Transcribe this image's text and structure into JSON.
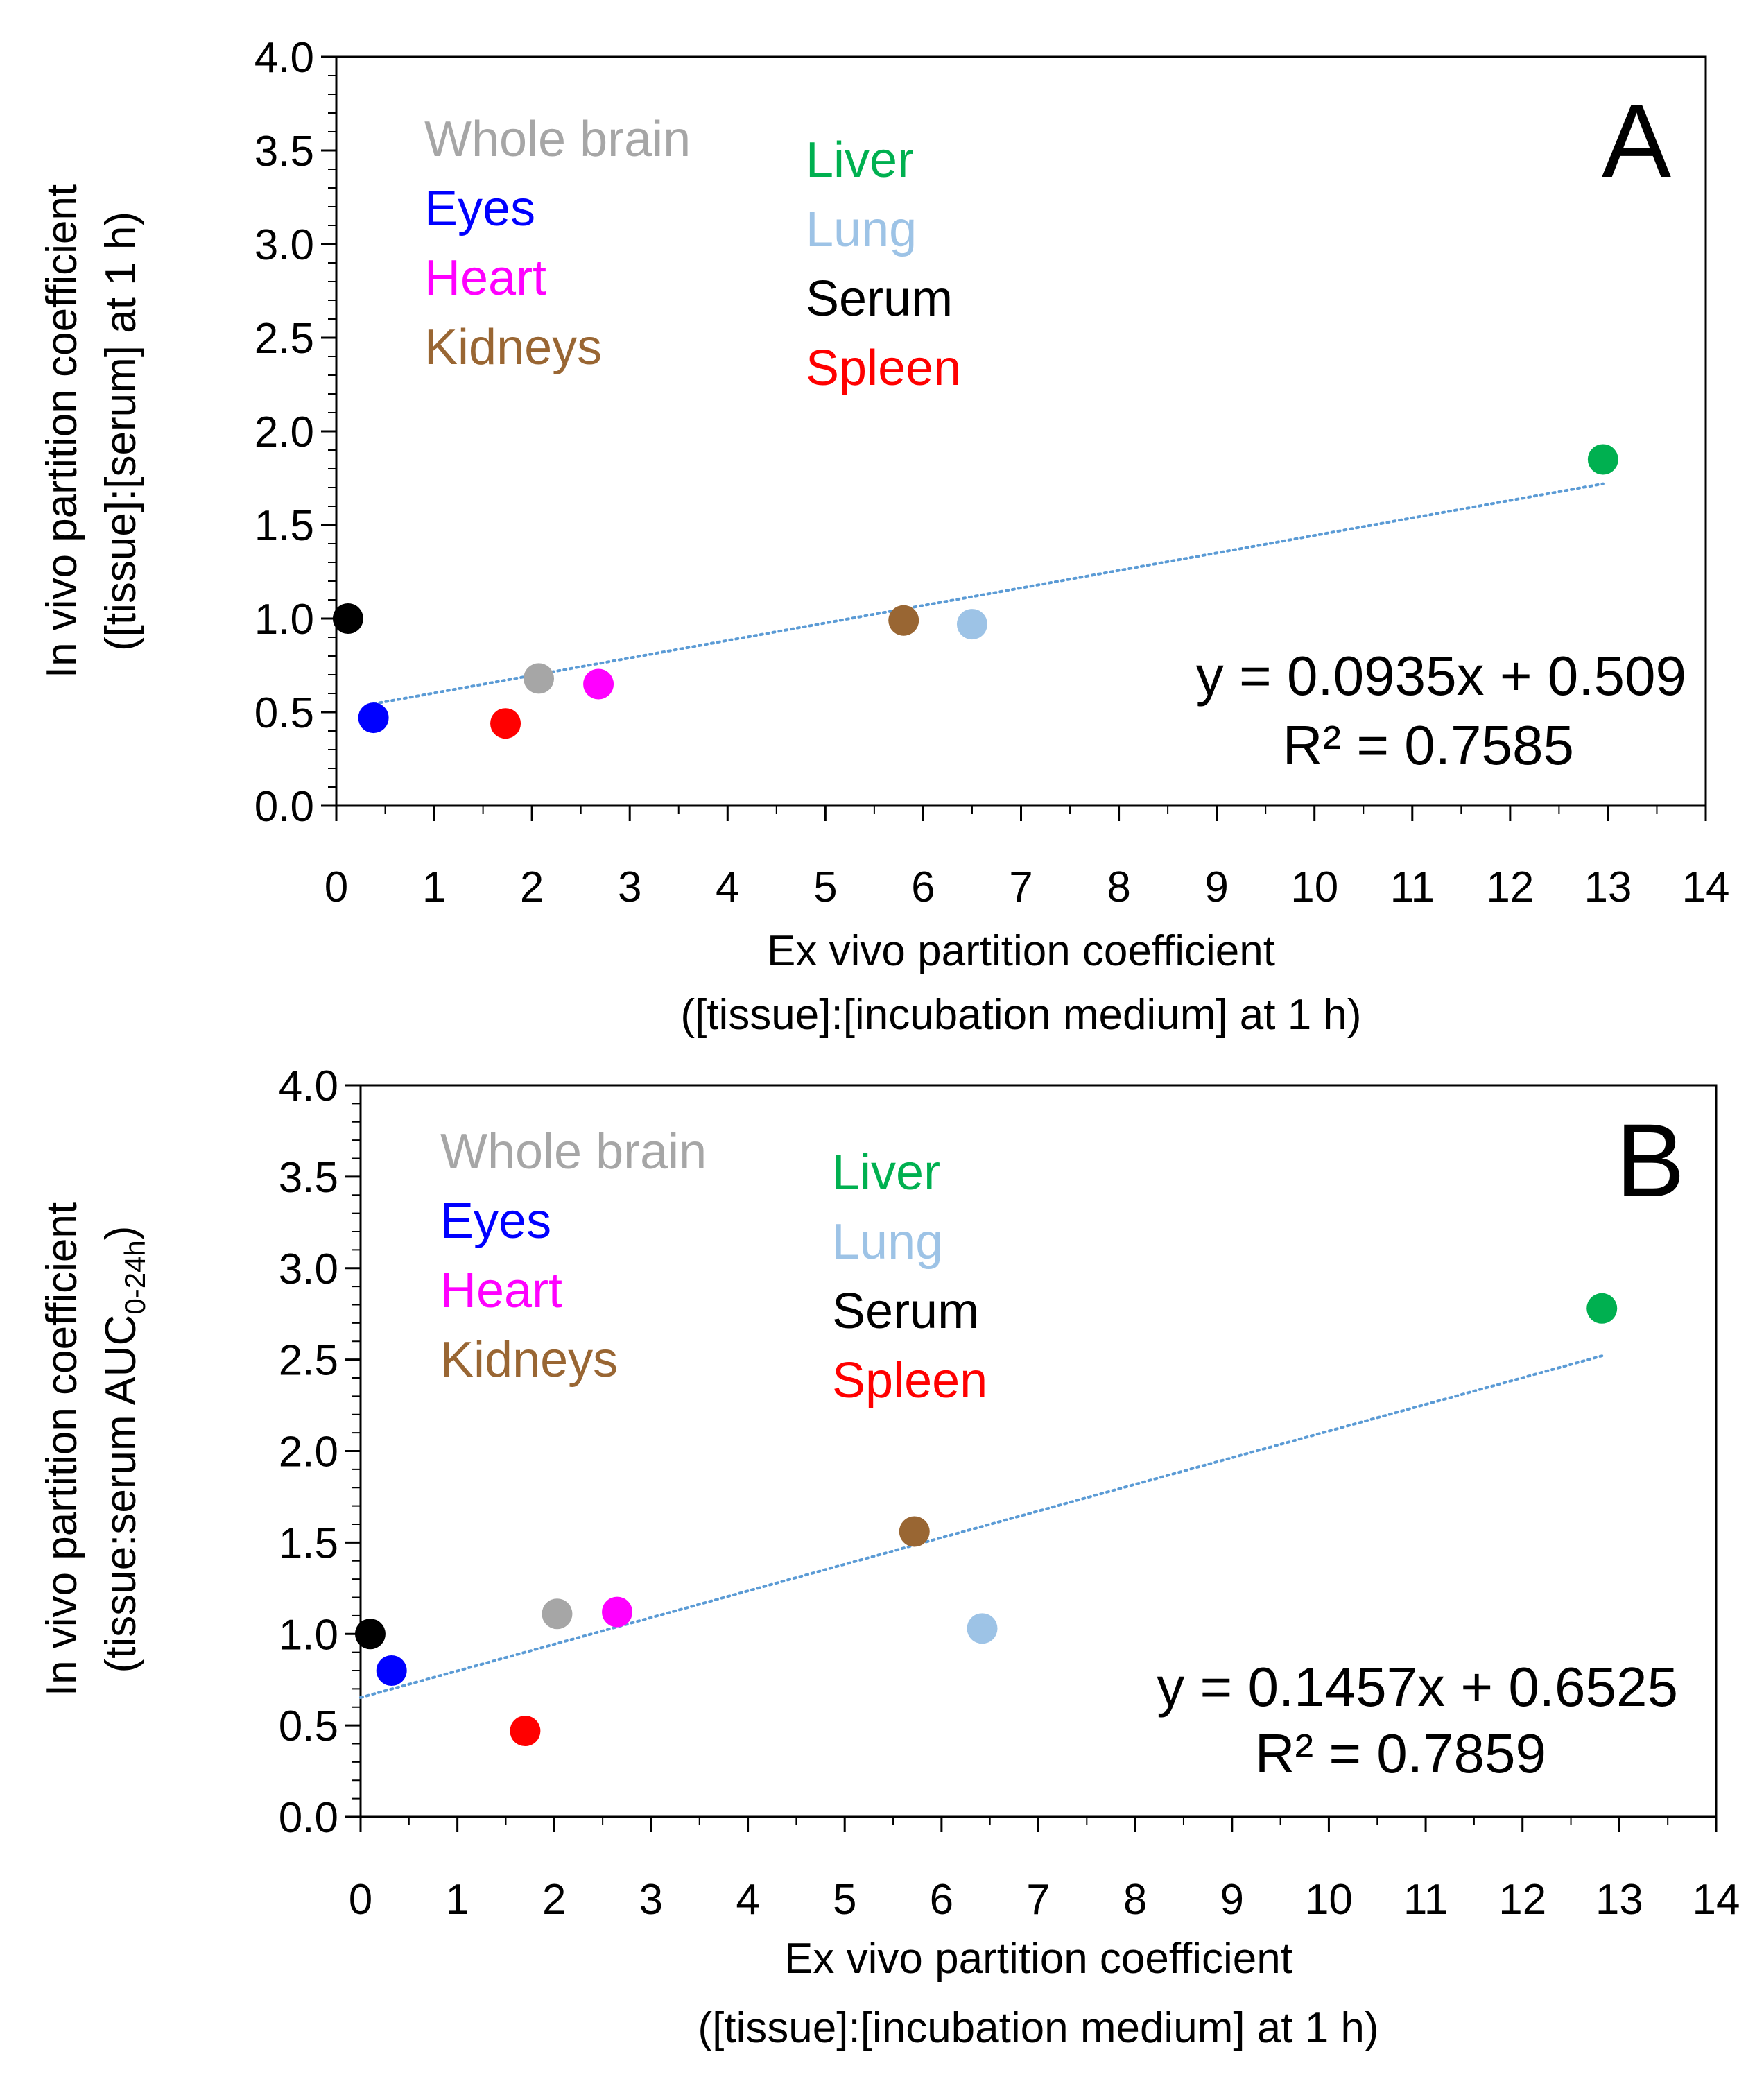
{
  "colors": {
    "Whole brain": "#a6a6a6",
    "Eyes": "#0000ff",
    "Heart": "#ff00ff",
    "Kidneys": "#996633",
    "Liver": "#00b050",
    "Lung": "#9dc3e6",
    "Serum": "#000000",
    "Spleen": "#ff0000",
    "trendline": "#5b9bd5"
  },
  "chart_data": [
    {
      "type": "scatter",
      "panel_label": "A",
      "xlabel": [
        "Ex vivo partition coefficient",
        "([tissue]:[incubation medium] at 1 h)"
      ],
      "ylabel": [
        "In vivo partition coefficient",
        "([tissue]:[serum] at 1 h)"
      ],
      "xlim": [
        0,
        14
      ],
      "ylim": [
        0,
        4.0
      ],
      "x_ticks": [
        "0",
        "1",
        "2",
        "3",
        "4",
        "5",
        "6",
        "7",
        "8",
        "9",
        "10",
        "11",
        "12",
        "13",
        "14"
      ],
      "y_ticks": [
        "0.0",
        "0.5",
        "1.0",
        "1.5",
        "2.0",
        "2.5",
        "3.0",
        "3.5",
        "4.0"
      ],
      "legend": {
        "col1": [
          "Whole brain",
          "Eyes",
          "Heart",
          "Kidneys"
        ],
        "col2": [
          "Liver",
          "Lung",
          "Serum",
          "Spleen"
        ]
      },
      "points": [
        {
          "name": "Serum",
          "x": 0.12,
          "y": 1.0
        },
        {
          "name": "Eyes",
          "x": 0.38,
          "y": 0.47
        },
        {
          "name": "Spleen",
          "x": 1.73,
          "y": 0.44
        },
        {
          "name": "Whole brain",
          "x": 2.07,
          "y": 0.68
        },
        {
          "name": "Heart",
          "x": 2.68,
          "y": 0.65
        },
        {
          "name": "Kidneys",
          "x": 5.8,
          "y": 0.99
        },
        {
          "name": "Lung",
          "x": 6.5,
          "y": 0.97
        },
        {
          "name": "Liver",
          "x": 12.95,
          "y": 1.85
        }
      ],
      "trendline": {
        "slope": 0.0935,
        "intercept": 0.509,
        "x_range": [
          0.38,
          12.95
        ]
      },
      "equation": "y = 0.0935x + 0.509",
      "r2": "R² = 0.7585"
    },
    {
      "type": "scatter",
      "panel_label": "B",
      "xlabel": [
        "Ex vivo partition coefficient",
        "([tissue]:[incubation medium] at 1 h)"
      ],
      "ylabel": [
        "In vivo partition coefficient",
        "(tissue:serum AUC",
        "0-24h",
        ")"
      ],
      "xlim": [
        0,
        14
      ],
      "ylim": [
        0,
        4.0
      ],
      "x_ticks": [
        "0",
        "1",
        "2",
        "3",
        "4",
        "5",
        "6",
        "7",
        "8",
        "9",
        "10",
        "11",
        "12",
        "13",
        "14"
      ],
      "y_ticks": [
        "0.0",
        "0.5",
        "1.0",
        "1.5",
        "2.0",
        "2.5",
        "3.0",
        "3.5",
        "4.0"
      ],
      "legend": {
        "col1": [
          "Whole brain",
          "Eyes",
          "Heart",
          "Kidneys"
        ],
        "col2": [
          "Liver",
          "Lung",
          "Serum",
          "Spleen"
        ]
      },
      "points": [
        {
          "name": "Serum",
          "x": 0.1,
          "y": 1.0
        },
        {
          "name": "Eyes",
          "x": 0.32,
          "y": 0.8
        },
        {
          "name": "Spleen",
          "x": 1.7,
          "y": 0.47
        },
        {
          "name": "Whole brain",
          "x": 2.03,
          "y": 1.11
        },
        {
          "name": "Heart",
          "x": 2.65,
          "y": 1.12
        },
        {
          "name": "Kidneys",
          "x": 5.72,
          "y": 1.56
        },
        {
          "name": "Lung",
          "x": 6.42,
          "y": 1.03
        },
        {
          "name": "Liver",
          "x": 12.82,
          "y": 2.78
        }
      ],
      "trendline": {
        "slope": 0.1457,
        "intercept": 0.6525,
        "x_range": [
          0.0,
          12.82
        ]
      },
      "equation": "y = 0.1457x + 0.6525",
      "r2": "R² = 0.7859"
    }
  ]
}
